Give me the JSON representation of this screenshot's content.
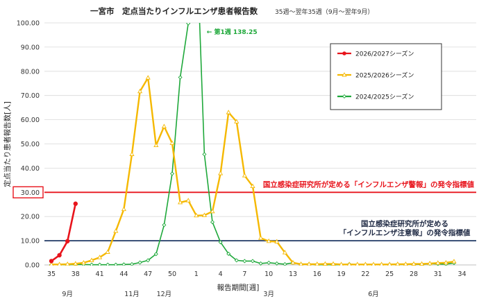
{
  "chart_data": {
    "type": "line",
    "title": "一宮市　定点当たりインフルエンザ患者報告数",
    "subtitle": "35週〜翌年35週（9月〜翌年9月）",
    "ylabel": "定点当たり患者報告数[人]",
    "xlabel": "報告期間[週]",
    "ylim": [
      0,
      100
    ],
    "yticks": [
      "0.00",
      "10.00",
      "20.00",
      "30.00",
      "40.00",
      "50.00",
      "60.00",
      "70.00",
      "80.00",
      "90.00",
      "100.00"
    ],
    "week_labels": [
      "35",
      "36",
      "37",
      "38",
      "39",
      "40",
      "41",
      "42",
      "43",
      "44",
      "45",
      "46",
      "47",
      "48",
      "49",
      "50",
      "51",
      "52",
      "1",
      "2",
      "3",
      "4",
      "5",
      "6",
      "7",
      "8",
      "9",
      "10",
      "11",
      "12",
      "13",
      "14",
      "15",
      "16",
      "17",
      "18",
      "19",
      "20",
      "21",
      "22",
      "23",
      "24",
      "25",
      "26",
      "27",
      "28",
      "29",
      "30",
      "31",
      "32",
      "33",
      "34"
    ],
    "tick_labels_shown": [
      "35",
      "38",
      "41",
      "44",
      "47",
      "50",
      "1",
      "4",
      "7",
      "10",
      "13",
      "16",
      "19",
      "22",
      "25",
      "28",
      "31",
      "34"
    ],
    "month_labels": [
      {
        "label": "9月",
        "week": "37"
      },
      {
        "label": "11月",
        "week": "45"
      },
      {
        "label": "12月",
        "week": "49"
      },
      {
        "label": "3月",
        "week": "10"
      },
      {
        "label": "6月",
        "week": "23"
      }
    ],
    "grid": true,
    "legend_position": "top-right",
    "series": [
      {
        "name": "2026/2027シーズン",
        "color": "#e8141c",
        "marker": "circle",
        "values": [
          1.6,
          4.0,
          9.8,
          25.3
        ]
      },
      {
        "name": "2025/2026シーズン",
        "color": "#f5b800",
        "marker": "triangle",
        "values": [
          0.2,
          0.2,
          0.3,
          0.5,
          0.9,
          1.9,
          3.1,
          5.3,
          14.0,
          23.0,
          45.7,
          71.7,
          77.3,
          49.4,
          57.2,
          50.3,
          25.8,
          26.6,
          20.4,
          20.5,
          22.1,
          37.8,
          63.0,
          59.2,
          36.9,
          32.5,
          11.1,
          9.8,
          9.6,
          5.1,
          0.9,
          0.3,
          0.3,
          0.3,
          0.4,
          0.4,
          0.2,
          0.2,
          0.2,
          0.2,
          0.2,
          0.2,
          0.2,
          0.3,
          0.3,
          0.4,
          0.4,
          0.6,
          0.8,
          0.9,
          1.4
        ]
      },
      {
        "name": "2024/2025シーズン",
        "color": "#1ea83a",
        "marker": "diamond",
        "values": [
          0.1,
          0.1,
          0.1,
          0.2,
          0.2,
          0.1,
          0.1,
          0.1,
          0.1,
          0.2,
          0.3,
          1.0,
          1.9,
          4.5,
          16.5,
          37.7,
          77.5,
          99.8,
          138.25,
          45.7,
          17.7,
          9.4,
          4.6,
          1.9,
          1.6,
          1.6,
          0.6,
          0.9,
          0.6,
          0.3,
          0.9,
          0.3,
          0.3,
          0.1,
          0.1,
          0.1,
          0.1,
          0.3,
          0.1,
          0.1,
          0.1,
          0.1,
          0.2,
          0.2,
          0.2,
          0.3,
          0.2,
          0.5,
          0.4,
          0.3,
          0.8
        ]
      }
    ],
    "reference_lines": [
      {
        "value": 30,
        "color": "#e8141c",
        "label_lines": [
          "国立感染症研究所が定める「インフルエンザ警報」の発令指標値"
        ],
        "style": "red"
      },
      {
        "value": 10,
        "color": "#1f3864",
        "label_lines": [
          "国立感染症研究所が定める",
          "「インフルエンザ注意報」の発令指標値"
        ],
        "style": "navy"
      }
    ],
    "annotations": [
      {
        "text": "← 第1週 138.25",
        "week": "1",
        "color": "#1ea83a"
      }
    ],
    "highlight_tick": "30.00"
  }
}
